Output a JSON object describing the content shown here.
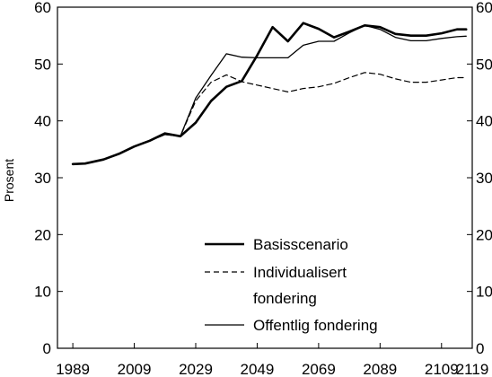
{
  "chart_data": {
    "type": "line",
    "title": "",
    "xlabel": "",
    "ylabel": "Prosent",
    "x_ticks": [
      1989,
      2009,
      2029,
      2049,
      2069,
      2089,
      2109,
      2119
    ],
    "y_ticks": [
      0,
      10,
      20,
      30,
      40,
      50,
      60
    ],
    "xlim": [
      1984,
      2119
    ],
    "ylim": [
      0,
      60
    ],
    "grid": false,
    "secondary_y_axis": true,
    "legend_position": "bottom-right",
    "series": [
      {
        "name": "Basisscenario",
        "style": "solid-thick",
        "x": [
          1989,
          1993,
          1999,
          2004,
          2009,
          2014,
          2019,
          2024,
          2029,
          2034,
          2039,
          2044,
          2049,
          2054,
          2059,
          2064,
          2069,
          2074,
          2079,
          2084,
          2089,
          2094,
          2099,
          2104,
          2109,
          2114,
          2117
        ],
        "values": [
          32.4,
          32.5,
          33.2,
          34.2,
          35.5,
          36.5,
          37.8,
          37.3,
          39.7,
          43.5,
          46.0,
          47.0,
          51.5,
          56.5,
          54.0,
          57.2,
          56.2,
          54.7,
          55.7,
          56.8,
          56.5,
          55.3,
          55.0,
          55.0,
          55.4,
          56.1,
          56.1
        ]
      },
      {
        "name": "Individualisert fondering",
        "style": "dashed",
        "x": [
          1989,
          1993,
          1999,
          2004,
          2009,
          2014,
          2019,
          2024,
          2029,
          2034,
          2039,
          2044,
          2049,
          2054,
          2059,
          2064,
          2069,
          2074,
          2079,
          2084,
          2089,
          2094,
          2099,
          2104,
          2109,
          2114,
          2117
        ],
        "values": [
          32.4,
          32.5,
          33.2,
          34.2,
          35.5,
          36.5,
          37.6,
          37.3,
          43.5,
          46.8,
          48.1,
          46.9,
          46.3,
          45.7,
          45.1,
          45.7,
          46.0,
          46.6,
          47.6,
          48.5,
          48.2,
          47.4,
          46.8,
          46.8,
          47.2,
          47.6,
          47.6
        ]
      },
      {
        "name": "Offentlig fondering",
        "style": "solid-thin",
        "x": [
          1989,
          1993,
          1999,
          2004,
          2009,
          2014,
          2019,
          2024,
          2029,
          2034,
          2039,
          2044,
          2049,
          2054,
          2059,
          2064,
          2069,
          2074,
          2079,
          2084,
          2089,
          2094,
          2099,
          2104,
          2109,
          2114,
          2117
        ],
        "values": [
          32.4,
          32.5,
          33.2,
          34.2,
          35.5,
          36.5,
          37.6,
          37.3,
          44.0,
          48.0,
          51.8,
          51.2,
          51.1,
          51.1,
          51.1,
          53.3,
          54.0,
          54.0,
          55.5,
          56.8,
          56.1,
          54.7,
          54.1,
          54.1,
          54.5,
          54.8,
          54.9
        ]
      }
    ],
    "legend": {
      "items": [
        {
          "series": 0,
          "lines": [
            "Basisscenario"
          ]
        },
        {
          "series": 1,
          "lines": [
            "Individualisert",
            "fondering"
          ]
        },
        {
          "series": 2,
          "lines": [
            "Offentlig fondering"
          ]
        }
      ]
    },
    "colors": {
      "line": "#000000",
      "frame": "#000000",
      "background": "#ffffff"
    }
  }
}
